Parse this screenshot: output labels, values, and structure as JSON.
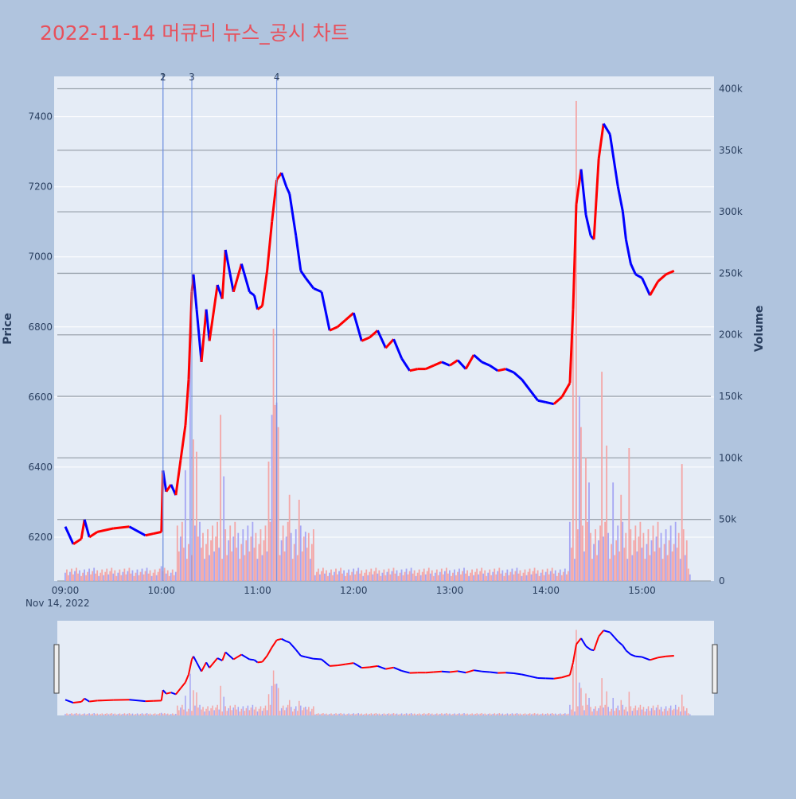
{
  "chart_data": {
    "type": "candlestick",
    "title": "2022-11-14 머큐리 뉴스_공시 차트",
    "title_color": "#e8505b",
    "date_label": "Nov 14, 2022",
    "ylabel": "Price",
    "y2label": "Volume",
    "price_range": [
      6075,
      7515
    ],
    "volume_range": [
      0,
      410000
    ],
    "price_ticks": [
      6200,
      6400,
      6600,
      6800,
      7000,
      7200,
      7400
    ],
    "volume_ticks": [
      {
        "value": 0,
        "label": "0"
      },
      {
        "value": 50000,
        "label": "50k"
      },
      {
        "value": 100000,
        "label": "100k"
      },
      {
        "value": 150000,
        "label": "150k"
      },
      {
        "value": 200000,
        "label": "200k"
      },
      {
        "value": 250000,
        "label": "250k"
      },
      {
        "value": 300000,
        "label": "300k"
      },
      {
        "value": 350000,
        "label": "350k"
      },
      {
        "value": 400000,
        "label": "400k"
      }
    ],
    "time_ticks": [
      "09:00",
      "10:00",
      "11:00",
      "12:00",
      "13:00",
      "14:00",
      "15:00"
    ],
    "news_markers": [
      {
        "label": "1",
        "time": "10:01"
      },
      {
        "label": "2",
        "time": "10:01"
      },
      {
        "label": "3",
        "time": "10:19"
      },
      {
        "label": "4",
        "time": "11:12"
      }
    ],
    "colors": {
      "up": "#ff0000",
      "down": "#0000ff",
      "up_volume": "#f4a6a6",
      "down_volume": "#a6a6f4",
      "plot_bg": "#e5ecf6",
      "grid": "#ffffff",
      "volume_grid": "#9aa3ad",
      "marker_line": "#6f8fe0"
    },
    "price_path": [
      [
        "09:00",
        6230
      ],
      [
        "09:05",
        6180
      ],
      [
        "09:10",
        6195
      ],
      [
        "09:12",
        6250
      ],
      [
        "09:15",
        6200
      ],
      [
        "09:20",
        6215
      ],
      [
        "09:30",
        6225
      ],
      [
        "09:40",
        6230
      ],
      [
        "09:50",
        6205
      ],
      [
        "09:55",
        6210
      ],
      [
        "10:00",
        6215
      ],
      [
        "10:01",
        6390
      ],
      [
        "10:03",
        6330
      ],
      [
        "10:06",
        6350
      ],
      [
        "10:09",
        6320
      ],
      [
        "10:12",
        6420
      ],
      [
        "10:15",
        6520
      ],
      [
        "10:17",
        6650
      ],
      [
        "10:19",
        6900
      ],
      [
        "10:20",
        6950
      ],
      [
        "10:22",
        6850
      ],
      [
        "10:25",
        6700
      ],
      [
        "10:28",
        6850
      ],
      [
        "10:30",
        6760
      ],
      [
        "10:35",
        6920
      ],
      [
        "10:38",
        6880
      ],
      [
        "10:40",
        7020
      ],
      [
        "10:45",
        6900
      ],
      [
        "10:50",
        6980
      ],
      [
        "10:55",
        6900
      ],
      [
        "10:58",
        6890
      ],
      [
        "11:00",
        6850
      ],
      [
        "11:03",
        6860
      ],
      [
        "11:06",
        6960
      ],
      [
        "11:09",
        7100
      ],
      [
        "11:12",
        7220
      ],
      [
        "11:15",
        7240
      ],
      [
        "11:18",
        7200
      ],
      [
        "11:20",
        7180
      ],
      [
        "11:24",
        7060
      ],
      [
        "11:27",
        6960
      ],
      [
        "11:30",
        6940
      ],
      [
        "11:35",
        6910
      ],
      [
        "11:40",
        6900
      ],
      [
        "11:45",
        6790
      ],
      [
        "11:50",
        6800
      ],
      [
        "11:55",
        6820
      ],
      [
        "12:00",
        6840
      ],
      [
        "12:05",
        6760
      ],
      [
        "12:10",
        6770
      ],
      [
        "12:15",
        6790
      ],
      [
        "12:20",
        6740
      ],
      [
        "12:25",
        6765
      ],
      [
        "12:30",
        6710
      ],
      [
        "12:35",
        6675
      ],
      [
        "12:40",
        6680
      ],
      [
        "12:45",
        6680
      ],
      [
        "12:50",
        6690
      ],
      [
        "12:55",
        6700
      ],
      [
        "13:00",
        6690
      ],
      [
        "13:05",
        6705
      ],
      [
        "13:10",
        6680
      ],
      [
        "13:15",
        6720
      ],
      [
        "13:20",
        6700
      ],
      [
        "13:25",
        6690
      ],
      [
        "13:30",
        6675
      ],
      [
        "13:35",
        6680
      ],
      [
        "13:40",
        6670
      ],
      [
        "13:45",
        6650
      ],
      [
        "13:50",
        6620
      ],
      [
        "13:55",
        6590
      ],
      [
        "14:00",
        6585
      ],
      [
        "14:05",
        6580
      ],
      [
        "14:10",
        6600
      ],
      [
        "14:15",
        6640
      ],
      [
        "14:17",
        6850
      ],
      [
        "14:19",
        7150
      ],
      [
        "14:22",
        7250
      ],
      [
        "14:25",
        7120
      ],
      [
        "14:28",
        7060
      ],
      [
        "14:30",
        7050
      ],
      [
        "14:33",
        7280
      ],
      [
        "14:36",
        7380
      ],
      [
        "14:40",
        7350
      ],
      [
        "14:45",
        7200
      ],
      [
        "14:48",
        7130
      ],
      [
        "14:50",
        7050
      ],
      [
        "14:53",
        6980
      ],
      [
        "14:56",
        6950
      ],
      [
        "15:00",
        6940
      ],
      [
        "15:05",
        6890
      ],
      [
        "15:10",
        6930
      ],
      [
        "15:15",
        6950
      ],
      [
        "15:20",
        6960
      ]
    ],
    "volume_spikes": [
      [
        "10:00",
        12000
      ],
      [
        "10:15",
        90000
      ],
      [
        "10:18",
        190000
      ],
      [
        "10:20",
        115000
      ],
      [
        "10:22",
        105000
      ],
      [
        "10:37",
        135000
      ],
      [
        "10:39",
        85000
      ],
      [
        "11:07",
        97000
      ],
      [
        "11:09",
        135000
      ],
      [
        "11:10",
        205000
      ],
      [
        "11:11",
        143000
      ],
      [
        "11:12",
        145000
      ],
      [
        "11:13",
        125000
      ],
      [
        "11:20",
        70000
      ],
      [
        "11:26",
        66000
      ],
      [
        "11:30",
        40000
      ],
      [
        "14:17",
        225000
      ],
      [
        "14:19",
        390000
      ],
      [
        "14:21",
        150000
      ],
      [
        "14:22",
        125000
      ],
      [
        "14:25",
        100000
      ],
      [
        "14:27",
        80000
      ],
      [
        "14:35",
        170000
      ],
      [
        "14:38",
        110000
      ],
      [
        "14:42",
        80000
      ],
      [
        "14:47",
        70000
      ],
      [
        "14:52",
        108000
      ],
      [
        "15:20",
        30000
      ],
      [
        "15:25",
        95000
      ]
    ]
  }
}
